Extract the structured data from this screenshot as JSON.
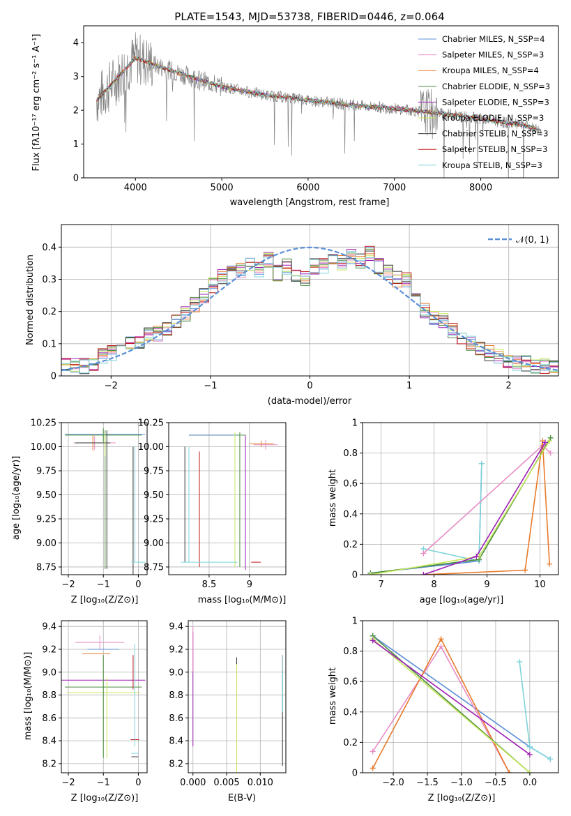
{
  "chart_data": [
    {
      "id": "spectrum",
      "type": "line",
      "title": "PLATE=1543, MJD=53738, FIBERID=0446, z=0.064",
      "xlabel": "wavelength [Angstrom, rest frame]",
      "ylabel": "Flux [fλ10⁻¹⁷ erg cm⁻² s⁻¹ A⁻¹]",
      "xlim": [
        3400,
        8900
      ],
      "ylim": [
        0,
        4.5
      ],
      "xticks": [
        4000,
        5000,
        6000,
        7000,
        8000
      ],
      "yticks": [
        0,
        1,
        2,
        3,
        4
      ],
      "data_color": "#808080",
      "continuum": [
        [
          3550,
          2.3
        ],
        [
          3700,
          2.7
        ],
        [
          4000,
          3.55
        ],
        [
          4500,
          3.1
        ],
        [
          5000,
          2.7
        ],
        [
          5500,
          2.45
        ],
        [
          6000,
          2.3
        ],
        [
          6500,
          2.15
        ],
        [
          7000,
          2.05
        ],
        [
          7500,
          1.92
        ],
        [
          8000,
          1.75
        ],
        [
          8500,
          1.55
        ],
        [
          8700,
          1.4
        ]
      ],
      "legend_loc": "upper right",
      "legend": [
        {
          "name": "Chabrier MILES, N_SSP=4",
          "color": "#5b8fd6"
        },
        {
          "name": "Salpeter MILES, N_SSP=3",
          "color": "#e88bc4"
        },
        {
          "name": "Kroupa MILES, N_SSP=4",
          "color": "#e87a2a"
        },
        {
          "name": "Chabrier ELODIE, N_SSP=3",
          "color": "#4a8c3c"
        },
        {
          "name": "Salpeter ELODIE, N_SSP=3",
          "color": "#9d1fb5"
        },
        {
          "name": "Kroupa ELODIE, N_SSP=3",
          "color": "#c7e65a"
        },
        {
          "name": "Chabrier STELIB, N_SSP=3",
          "color": "#333333"
        },
        {
          "name": "Salpeter STELIB, N_SSP=3",
          "color": "#c01818"
        },
        {
          "name": "Kroupa STELIB, N_SSP=3",
          "color": "#7ed3d9"
        }
      ]
    },
    {
      "id": "residuals",
      "type": "line",
      "xlabel": "(data-model)/error",
      "ylabel": "Normed distribution",
      "xlim": [
        -2.5,
        2.5
      ],
      "ylim": [
        0,
        0.47
      ],
      "xticks": [
        -2,
        -1,
        0,
        1,
        2
      ],
      "yticks": [
        0.0,
        0.1,
        0.2,
        0.3,
        0.4
      ],
      "grid": true,
      "legend_loc": "upper right",
      "normal_label": "𝒩(0, 1)",
      "normal_color": "#5b8fd6",
      "hist_center": [
        0.03,
        0.03,
        0.03,
        0.04,
        0.06,
        0.07,
        0.08,
        0.1,
        0.11,
        0.13,
        0.13,
        0.15,
        0.17,
        0.19,
        0.22,
        0.25,
        0.28,
        0.31,
        0.32,
        0.33,
        0.35,
        0.33,
        0.36,
        0.32,
        0.34,
        0.31,
        0.3,
        0.34,
        0.34,
        0.36,
        0.35,
        0.37,
        0.36,
        0.38,
        0.34,
        0.32,
        0.3,
        0.3,
        0.25,
        0.2,
        0.18,
        0.17,
        0.14,
        0.12,
        0.1,
        0.08,
        0.07,
        0.06,
        0.05,
        0.04,
        0.04,
        0.03,
        0.03,
        0.03
      ]
    },
    {
      "id": "age-vs-Z",
      "type": "scatter",
      "xlabel": "Z [log₁₀(Z/Z⊙)]",
      "ylabel": "age  [log₁₀(age/yr)]",
      "xlim": [
        -2.2,
        0.25
      ],
      "ylim": [
        8.67,
        10.25
      ],
      "xticks": [
        -2,
        -1,
        0
      ],
      "yticks": [
        8.75,
        9.0,
        9.25,
        9.5,
        9.75,
        10.0,
        10.25
      ],
      "ytick_labels": [
        "8.75",
        "9.00",
        "9.25",
        "9.50",
        "9.75",
        "10.00",
        "10.25"
      ],
      "grid": true
    },
    {
      "id": "age-vs-mass",
      "type": "scatter",
      "xlabel": "mass [log₁₀(M/M⊙)]",
      "xlim": [
        8.0,
        9.45
      ],
      "ylim": [
        8.67,
        10.25
      ],
      "xticks": [
        8.5,
        9.0
      ],
      "yticks": [
        8.75,
        9.0,
        9.25,
        9.5,
        9.75,
        10.0,
        10.25
      ],
      "ytick_labels": [
        "8.75",
        "9.00",
        "9.25",
        "9.50",
        "9.75",
        "10.00",
        "10.25"
      ],
      "grid": true
    },
    {
      "id": "weight-vs-age",
      "type": "line",
      "xlabel": "age  [log₁₀(age/yr)]",
      "ylabel": "mass weight",
      "xlim": [
        6.65,
        10.35
      ],
      "ylim": [
        0,
        1.0
      ],
      "xticks": [
        7,
        8,
        9,
        10
      ],
      "yticks": [
        0.0,
        0.2,
        0.4,
        0.6,
        0.8,
        1.0
      ],
      "grid": true,
      "series": [
        {
          "color": "#5b8fd6",
          "points": [
            [
              6.8,
              0.01
            ],
            [
              8.85,
              0.09
            ],
            [
              8.9,
              0.73
            ]
          ]
        },
        {
          "color": "#7ed3d9",
          "points": [
            [
              7.8,
              0.17
            ],
            [
              8.85,
              0.09
            ],
            [
              8.9,
              0.73
            ]
          ]
        },
        {
          "color": "#e88bc4",
          "points": [
            [
              7.8,
              0.14
            ],
            [
              10.05,
              0.85
            ],
            [
              10.2,
              0.8
            ]
          ]
        },
        {
          "color": "#e87a2a",
          "points": [
            [
              7.8,
              0.0
            ],
            [
              9.72,
              0.03
            ],
            [
              10.05,
              0.88
            ],
            [
              10.18,
              0.07
            ]
          ]
        },
        {
          "color": "#4a8c3c",
          "points": [
            [
              6.8,
              0.01
            ],
            [
              8.85,
              0.1
            ],
            [
              10.2,
              0.9
            ]
          ]
        },
        {
          "color": "#c7e65a",
          "points": [
            [
              6.8,
              0.0
            ],
            [
              8.85,
              0.12
            ],
            [
              10.18,
              0.88
            ]
          ]
        },
        {
          "color": "#9d1fb5",
          "points": [
            [
              7.8,
              0.0
            ],
            [
              8.8,
              0.12
            ],
            [
              10.1,
              0.87
            ]
          ]
        }
      ]
    },
    {
      "id": "mass-vs-Z",
      "type": "scatter",
      "xlabel": "Z [log₁₀(Z/Z⊙)]",
      "ylabel": "mass [log₁₀(M/M⊙)]",
      "xlim": [
        -2.2,
        0.25
      ],
      "ylim": [
        8.12,
        9.45
      ],
      "xticks": [
        -2,
        -1,
        0
      ],
      "yticks": [
        8.2,
        8.4,
        8.6,
        8.8,
        9.0,
        9.2,
        9.4
      ],
      "ytick_labels": [
        "8.2",
        "8.4",
        "8.6",
        "8.8",
        "9.0",
        "9.2",
        "9.4"
      ],
      "grid": true
    },
    {
      "id": "mass-vs-ebv",
      "type": "scatter",
      "xlabel": "E(B-V)",
      "xlim": [
        -0.0007,
        0.0138
      ],
      "ylim": [
        8.12,
        9.45
      ],
      "xticks": [
        0.0,
        0.005,
        0.01
      ],
      "xtick_labels": [
        "0.000",
        "0.005",
        "0.010"
      ],
      "yticks": [
        8.2,
        8.4,
        8.6,
        8.8,
        9.0,
        9.2,
        9.4
      ],
      "ytick_labels": [
        "8.2",
        "8.4",
        "8.6",
        "8.8",
        "9.0",
        "9.2",
        "9.4"
      ],
      "grid": true
    },
    {
      "id": "weight-vs-Z",
      "type": "line",
      "xlabel": "Z [log₁₀(Z/Z⊙)]",
      "ylabel": "mass weight",
      "xlim": [
        -2.45,
        0.42
      ],
      "ylim": [
        0,
        1.0
      ],
      "xticks": [
        -2.0,
        -1.5,
        -1.0,
        -0.5,
        0.0
      ],
      "xtick_labels": [
        "−2.0",
        "−1.5",
        "−1.0",
        "−0.5",
        "0.0"
      ],
      "yticks": [
        0.0,
        0.2,
        0.4,
        0.6,
        0.8,
        1.0
      ],
      "grid": true,
      "series": [
        {
          "color": "#5b8fd6",
          "points": [
            [
              -2.3,
              0.9
            ],
            [
              0.0,
              0.17
            ],
            [
              0.3,
              0.09
            ]
          ]
        },
        {
          "color": "#7ed3d9",
          "points": [
            [
              -0.15,
              0.73
            ],
            [
              0.0,
              0.17
            ],
            [
              0.3,
              0.09
            ]
          ]
        },
        {
          "color": "#e88bc4",
          "points": [
            [
              -2.3,
              0.14
            ],
            [
              -1.3,
              0.83
            ],
            [
              -0.3,
              0.0
            ]
          ]
        },
        {
          "color": "#e87a2a",
          "points": [
            [
              -2.3,
              0.03
            ],
            [
              -1.3,
              0.88
            ],
            [
              -0.3,
              0.0
            ]
          ]
        },
        {
          "color": "#4a8c3c",
          "points": [
            [
              -2.3,
              0.9
            ],
            [
              0.0,
              0.0
            ]
          ]
        },
        {
          "color": "#c7e65a",
          "points": [
            [
              -2.3,
              0.88
            ],
            [
              0.0,
              0.0
            ]
          ]
        },
        {
          "color": "#9d1fb5",
          "points": [
            [
              -2.3,
              0.87
            ],
            [
              0.0,
              0.12
            ]
          ]
        }
      ]
    }
  ]
}
